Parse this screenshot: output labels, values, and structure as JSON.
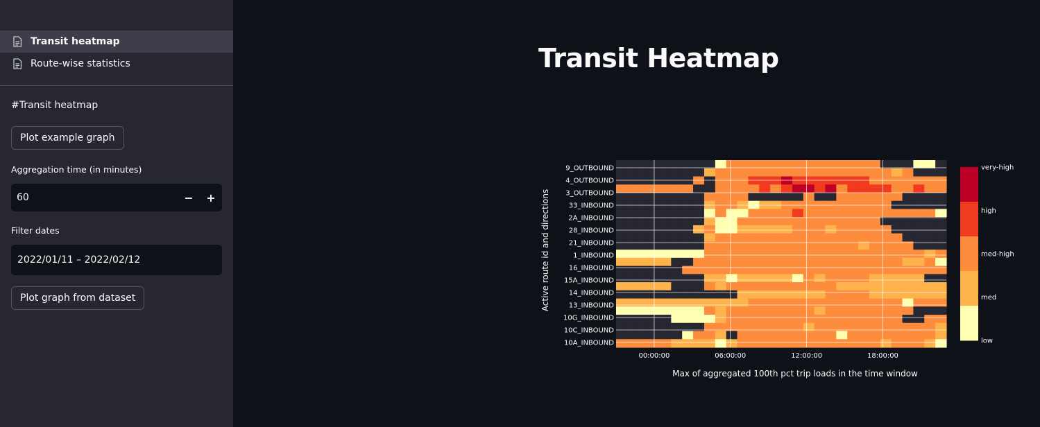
{
  "sidebar": {
    "nav": [
      {
        "label": "Transit heatmap",
        "icon": "document-icon",
        "active": true
      },
      {
        "label": "Route-wise statistics",
        "icon": "document-icon",
        "active": false
      }
    ],
    "heading": "#Transit heatmap",
    "plot_example_label": "Plot example graph",
    "aggregation_label": "Aggregation time (in minutes)",
    "aggregation_value": "60",
    "decrement_symbol": "−",
    "increment_symbol": "+",
    "filter_dates_label": "Filter dates",
    "date_range": "2022/01/11 – 2022/02/12",
    "plot_dataset_label": "Plot graph from dataset"
  },
  "main": {
    "title": "Transit Heatmap"
  },
  "chart_data": {
    "type": "heatmap",
    "xlabel": "Max of aggregated 100th pct trip loads in the time window",
    "ylabel": "Active route id and directions",
    "x_tick_labels": [
      "00:00:00",
      "06:00:00",
      "12:00:00",
      "18:00:00"
    ],
    "y_tick_labels": [
      "9_OUTBOUND",
      "4_OUTBOUND",
      "3_OUTBOUND",
      "33_INBOUND",
      "2A_INBOUND",
      "28_INBOUND",
      "21_INBOUND",
      "1_INBOUND",
      "16_INBOUND",
      "15A_INBOUND",
      "14_INBOUND",
      "13_INBOUND",
      "10G_INBOUND",
      "10C_INBOUND",
      "10A_INBOUND"
    ],
    "colorbar": {
      "labels": [
        "very-high",
        "high",
        "med-high",
        "med",
        "low"
      ],
      "colors": [
        "#bd0026",
        "#f03b20",
        "#fd8d3c",
        "#feb24c",
        "#ffffb2"
      ]
    },
    "empty_color": "#262730",
    "grid": true,
    "levels_legend": {
      ".": "none",
      "L": "low",
      "M": "med",
      "O": "med-high",
      "H": "high",
      "V": "very-high"
    },
    "rows": [
      ".........LOOOOOOOOOOOOOO...LL.",
      "........MOOOOOOOOOOOOOOOOMO...",
      ".......O.OOOHHHVHHHHHHHOOOOOOO",
      "OOOOOOO..OOOOHOHVVHVOHHHHOOHOO",
      "........OOOO.....O..OOOOOO....",
      "........MOOMLMMOOOOOOOOOO.....",
      "........LOLLOOOOHOOOOOOOOOOOOL",
      "........MLLOOOOOOOOOOOOO......",
      ".......MOLLMMMMMOOOMOOOOO.....",
      "........MOOOOOOOOOOOOOOOOO....",
      "........OOOOOOOOOOOOOOMOOOO...",
      "LLLLLLLLOOOOOOOOOOOOOOOOOOOOMO",
      "MMMMM..OOOOOOOOOOOOOOOOOOOMMOL",
      "......OOOOOOOOOOOOOOOOOOOOOOOO",
      "........MMLMMMMMLOMOOOOMMMMM..",
      "MMMMM...OMOOOOOOOOOOMMMMMMMMMM",
      "...........MMMMMMMMOOOOMMMMMMM",
      "MMMMMMMMMMMMOOOOOOOOOOOOOOLOOO",
      "LLLLLLLLOMOOOOOOOOMOOOOOOOO...",
      ".....LLLLMOOOOOOOOOOOOOOOO..OO",
      "........OOOOOOOOOMOOOOOOOOOOOM",
      "......LOOM.OOOOOOOOOLOOOOOOOOM",
      "OOOOOMMMMLMOOOOOOOOOOOOOMOOOML"
    ]
  }
}
